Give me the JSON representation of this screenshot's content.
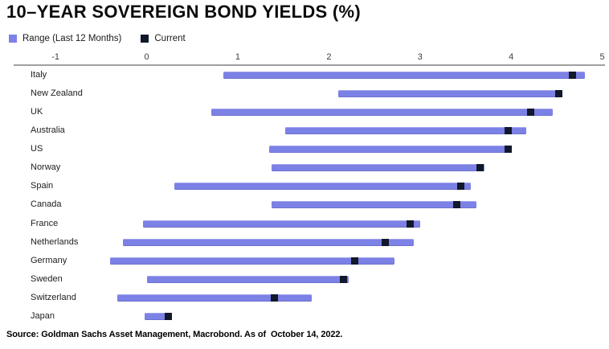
{
  "title": "10–YEAR SOVEREIGN BOND YIELDS (%)",
  "legend": {
    "range_label": "Range (Last 12 Months)",
    "current_label": "Current"
  },
  "source": "Source: Goldman Sachs Asset Management, Macrobond. As of  October 14, 2022.",
  "colors": {
    "range": "#7c81e6",
    "current": "#11182b",
    "axis_line": "#a0a0a0"
  },
  "chart_data": {
    "type": "bar",
    "subtype": "horizontal-floating-range-with-current-marker",
    "title": "10–YEAR SOVEREIGN BOND YIELDS (%)",
    "xlabel": "",
    "ylabel": "",
    "xlim": [
      -1.46,
      5.03
    ],
    "xticks": [
      -1,
      0,
      1,
      2,
      3,
      4,
      5
    ],
    "grid": false,
    "legend_position": "top-left",
    "categories": [
      "Italy",
      "New Zealand",
      "UK",
      "Australia",
      "US",
      "Norway",
      "Spain",
      "Canada",
      "France",
      "Netherlands",
      "Germany",
      "Sweden",
      "Switzerland",
      "Japan"
    ],
    "series": [
      {
        "name": "range_min",
        "values": [
          0.84,
          2.1,
          0.71,
          1.52,
          1.34,
          1.37,
          0.3,
          1.37,
          -0.04,
          -0.26,
          -0.4,
          0.0,
          -0.32,
          -0.02
        ]
      },
      {
        "name": "range_max",
        "values": [
          4.81,
          4.55,
          4.46,
          4.17,
          3.99,
          3.71,
          3.56,
          3.62,
          3.0,
          2.93,
          2.72,
          2.22,
          1.81,
          0.25
        ]
      },
      {
        "name": "current",
        "values": [
          4.67,
          4.52,
          4.21,
          3.97,
          3.97,
          3.66,
          3.45,
          3.4,
          2.89,
          2.62,
          2.28,
          2.16,
          1.4,
          0.24
        ]
      }
    ]
  }
}
